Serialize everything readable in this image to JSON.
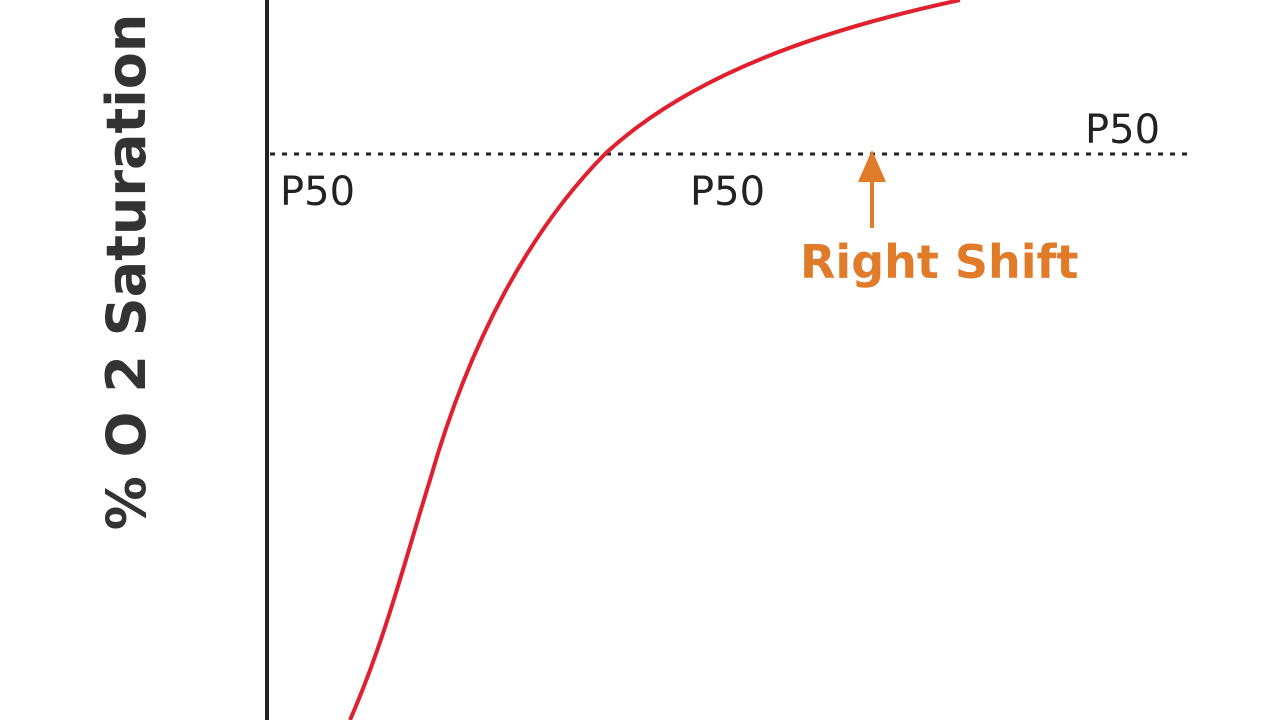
{
  "y_axis_label": "% O 2 Saturation",
  "labels": [
    "P50",
    "P50",
    "P50"
  ],
  "annotation": "Right Shift"
}
